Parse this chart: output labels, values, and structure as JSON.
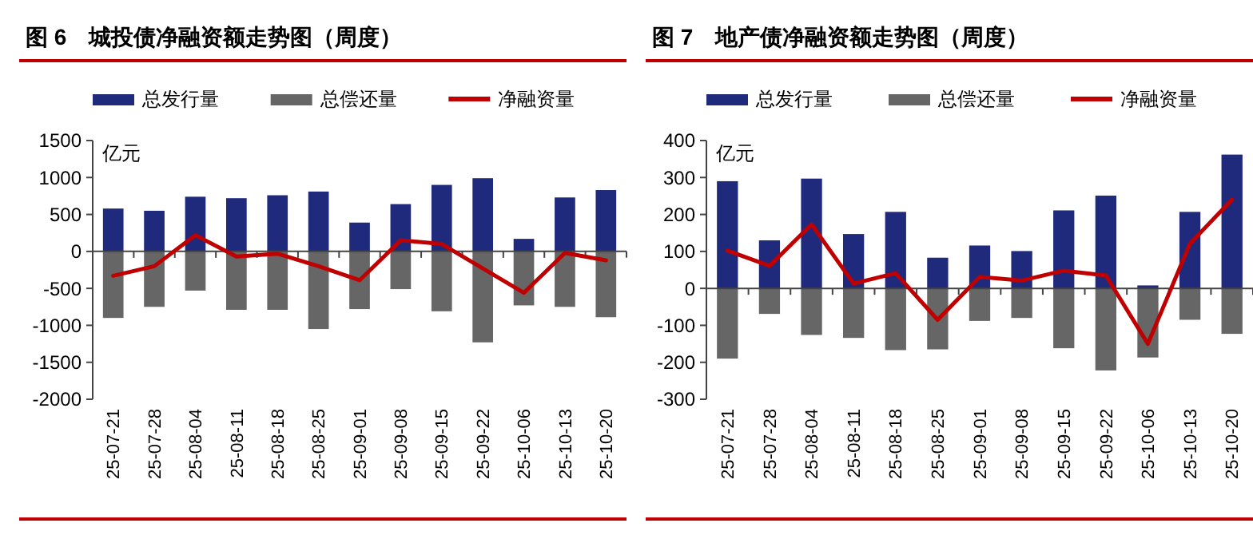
{
  "chart_data": [
    {
      "type": "bar",
      "title": "图 6　城投债净融资额走势图（周度）",
      "ylabel": "亿元",
      "stacked": true,
      "legend": "top",
      "categories": [
        "25-07-21",
        "25-07-28",
        "25-08-04",
        "25-08-11",
        "25-08-18",
        "25-08-25",
        "25-09-01",
        "25-09-08",
        "25-09-15",
        "25-09-22",
        "25-10-06",
        "25-10-13",
        "25-10-20"
      ],
      "ylim": [
        -2000,
        1500
      ],
      "yticks": [
        -2000,
        -1500,
        -1000,
        -500,
        0,
        500,
        1000,
        1500
      ],
      "series": [
        {
          "name": "总发行量",
          "color": "#1f2a7c",
          "values": [
            580,
            550,
            740,
            720,
            760,
            810,
            390,
            640,
            900,
            990,
            170,
            730,
            830
          ]
        },
        {
          "name": "总偿还量",
          "color": "#666666",
          "values": [
            -900,
            -750,
            -530,
            -790,
            -790,
            -1050,
            -780,
            -510,
            -810,
            -1230,
            -730,
            -750,
            -890
          ]
        },
        {
          "name": "净融资量",
          "type": "line",
          "color": "#c00000",
          "values": [
            -330,
            -200,
            220,
            -70,
            -30,
            -200,
            -390,
            150,
            100,
            -230,
            -560,
            -20,
            -120
          ]
        }
      ]
    },
    {
      "type": "bar",
      "title": "图 7　地产债净融资额走势图（周度）",
      "ylabel": "亿元",
      "stacked": true,
      "legend": "top",
      "categories": [
        "25-07-21",
        "25-07-28",
        "25-08-04",
        "25-08-11",
        "25-08-18",
        "25-08-25",
        "25-09-01",
        "25-09-08",
        "25-09-15",
        "25-09-22",
        "25-10-06",
        "25-10-13",
        "25-10-20"
      ],
      "ylim": [
        -300,
        400
      ],
      "yticks": [
        -300,
        -200,
        -100,
        0,
        100,
        200,
        300,
        400
      ],
      "series": [
        {
          "name": "总发行量",
          "color": "#1f2a7c",
          "values": [
            290,
            130,
            297,
            147,
            207,
            83,
            116,
            101,
            211,
            251,
            8,
            207,
            362
          ]
        },
        {
          "name": "总偿还量",
          "color": "#666666",
          "values": [
            -190,
            -69,
            -126,
            -134,
            -167,
            -165,
            -88,
            -80,
            -162,
            -222,
            -187,
            -85,
            -123
          ]
        },
        {
          "name": "净融资量",
          "type": "line",
          "color": "#c00000",
          "values": [
            102,
            61,
            173,
            13,
            41,
            -85,
            31,
            21,
            48,
            35,
            -150,
            121,
            240
          ]
        }
      ]
    }
  ]
}
